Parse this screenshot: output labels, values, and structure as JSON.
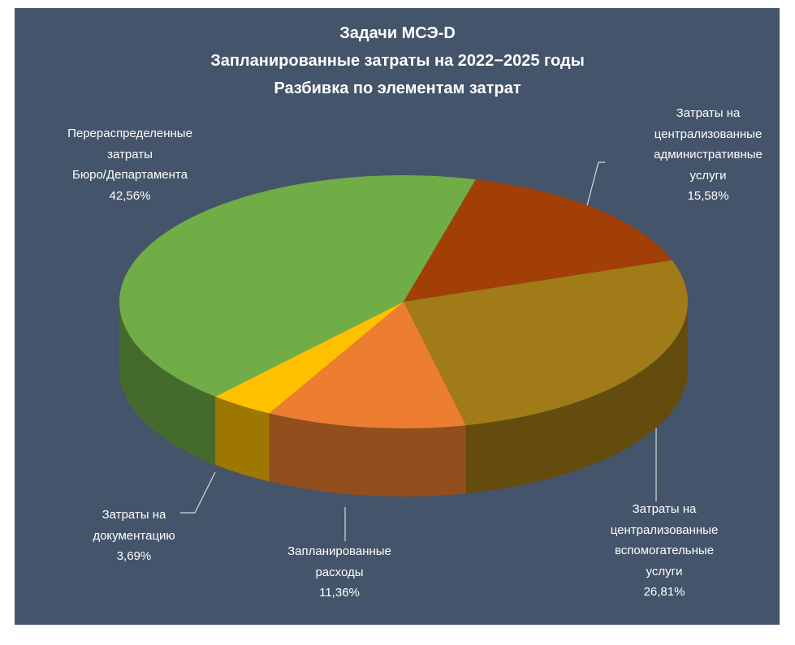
{
  "chart_data": {
    "type": "pie3d",
    "title": "Задачи МСЭ-D",
    "subtitle": [
      "Запланированные затраты на 2022−2025 годы",
      "Разбивка по элементам затрат"
    ],
    "categories": [
      "Перераспределенные\nзатраты\nБюро/Департамента",
      "Затраты на\nцентрализованные\nадминистративные\nуслуги",
      "Затраты на\nцентрализованные\nвспомогательные  услуги",
      "Запланированные\nрасходы",
      "Затраты на\nдокументацию"
    ],
    "values": [
      42.56,
      15.58,
      26.81,
      11.36,
      3.69
    ],
    "value_labels": [
      "42,56%",
      "15,58%",
      "26,81%",
      "11,36%",
      "3,69%"
    ],
    "colors": [
      "#70ad47",
      "#a23f06",
      "#a07b17",
      "#ed7d31",
      "#ffc000"
    ]
  }
}
